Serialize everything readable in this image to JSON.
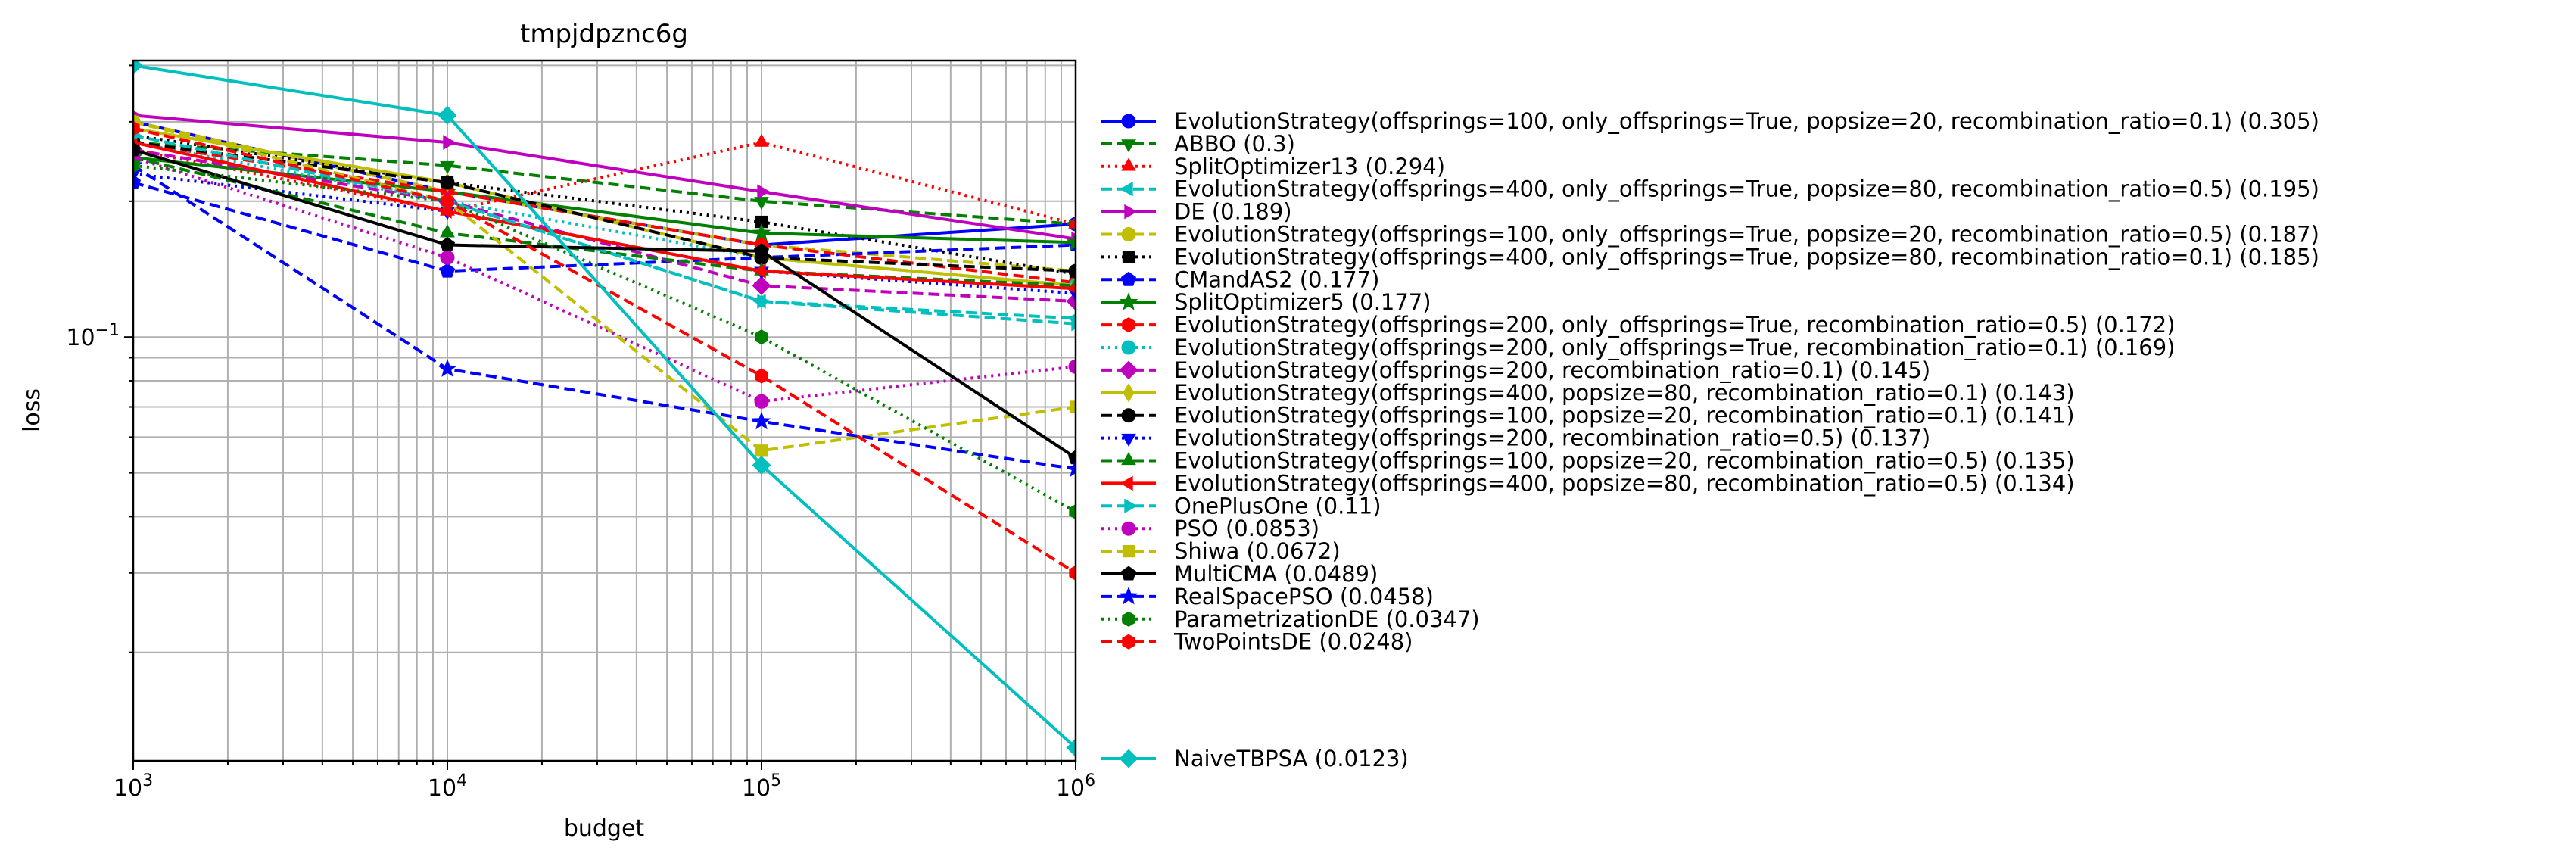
{
  "chart_data": {
    "type": "line",
    "title": "tmpjdpznc6g",
    "xlabel": "budget",
    "ylabel": "loss",
    "xscale": "log",
    "yscale": "log",
    "xlim": [
      1000,
      1000000
    ],
    "ylim": [
      0.0115,
      0.41
    ],
    "grid": true,
    "legend_position": "right",
    "x_ticks": [
      {
        "value": 1000,
        "label": "10^3"
      },
      {
        "value": 10000,
        "label": "10^4"
      },
      {
        "value": 100000,
        "label": "10^5"
      },
      {
        "value": 1000000,
        "label": "10^6"
      }
    ],
    "y_ticks": [
      {
        "value": 0.1,
        "label": "10^−1"
      }
    ],
    "x": [
      1000,
      10000,
      100000,
      1000000
    ],
    "series": [
      {
        "name": "EvolutionStrategy(offsprings=100, only_offsprings=True, popsize=20, recombination_ratio=0.1) (0.305)",
        "color": "#0000ff",
        "dash": "solid",
        "marker": "circle",
        "values": [
          0.3,
          0.21,
          0.16,
          0.178
        ]
      },
      {
        "name": "ABBO (0.3)",
        "color": "#008000",
        "dash": "dashed",
        "marker": "triangle-down",
        "values": [
          0.27,
          0.24,
          0.2,
          0.178
        ]
      },
      {
        "name": "SplitOptimizer13 (0.294)",
        "color": "#ff0000",
        "dash": "dotted",
        "marker": "triangle-up",
        "values": [
          0.26,
          0.19,
          0.27,
          0.178
        ]
      },
      {
        "name": "EvolutionStrategy(offsprings=400, only_offsprings=True, popsize=80, recombination_ratio=0.5) (0.195)",
        "color": "#00bfbf",
        "dash": "dashed",
        "marker": "triangle-left",
        "values": [
          0.3,
          0.2,
          0.12,
          0.11
        ]
      },
      {
        "name": "DE (0.189)",
        "color": "#bf00bf",
        "dash": "solid",
        "marker": "triangle-right",
        "values": [
          0.31,
          0.27,
          0.21,
          0.165
        ]
      },
      {
        "name": "EvolutionStrategy(offsprings=100, only_offsprings=True, popsize=20, recombination_ratio=0.5) (0.187)",
        "color": "#bfbf00",
        "dash": "dashed",
        "marker": "circle",
        "values": [
          0.3,
          0.21,
          0.16,
          0.14
        ]
      },
      {
        "name": "EvolutionStrategy(offsprings=400, only_offsprings=True, popsize=80, recombination_ratio=0.1) (0.185)",
        "color": "#000000",
        "dash": "dotted",
        "marker": "square",
        "values": [
          0.28,
          0.22,
          0.18,
          0.138
        ]
      },
      {
        "name": "CMandAS2 (0.177)",
        "color": "#0000ff",
        "dash": "dashed",
        "marker": "pentagon",
        "values": [
          0.22,
          0.14,
          0.15,
          0.16
        ]
      },
      {
        "name": "SplitOptimizer5 (0.177)",
        "color": "#008000",
        "dash": "solid",
        "marker": "star",
        "values": [
          0.25,
          0.21,
          0.17,
          0.162
        ]
      },
      {
        "name": "EvolutionStrategy(offsprings=200, only_offsprings=True, recombination_ratio=0.5) (0.172)",
        "color": "#ff0000",
        "dash": "dashed",
        "marker": "hexagon",
        "values": [
          0.27,
          0.21,
          0.16,
          0.132
        ]
      },
      {
        "name": "EvolutionStrategy(offsprings=200, only_offsprings=True, recombination_ratio=0.1) (0.169)",
        "color": "#00bfbf",
        "dash": "dotted",
        "marker": "circle",
        "values": [
          0.27,
          0.2,
          0.15,
          0.13
        ]
      },
      {
        "name": "EvolutionStrategy(offsprings=200, recombination_ratio=0.1) (0.145)",
        "color": "#bf00bf",
        "dash": "dashed",
        "marker": "diamond",
        "values": [
          0.26,
          0.2,
          0.13,
          0.12
        ]
      },
      {
        "name": "EvolutionStrategy(offsprings=400, popsize=80, recombination_ratio=0.1) (0.143)",
        "color": "#bfbf00",
        "dash": "solid",
        "marker": "diamond-thin",
        "values": [
          0.29,
          0.22,
          0.15,
          0.13
        ]
      },
      {
        "name": "EvolutionStrategy(offsprings=100, popsize=20, recombination_ratio=0.1) (0.141)",
        "color": "#000000",
        "dash": "dashed",
        "marker": "circle",
        "values": [
          0.27,
          0.22,
          0.15,
          0.14
        ]
      },
      {
        "name": "EvolutionStrategy(offsprings=200, recombination_ratio=0.5) (0.137)",
        "color": "#0000ff",
        "dash": "dotted",
        "marker": "triangle-down",
        "values": [
          0.23,
          0.19,
          0.14,
          0.125
        ]
      },
      {
        "name": "EvolutionStrategy(offsprings=100, popsize=20, recombination_ratio=0.5) (0.135)",
        "color": "#008000",
        "dash": "dashed",
        "marker": "triangle-up",
        "values": [
          0.25,
          0.17,
          0.14,
          0.13
        ]
      },
      {
        "name": "EvolutionStrategy(offsprings=400, popsize=80, recombination_ratio=0.5) (0.134)",
        "color": "#ff0000",
        "dash": "solid",
        "marker": "triangle-left",
        "values": [
          0.27,
          0.19,
          0.14,
          0.128
        ]
      },
      {
        "name": "OnePlusOne (0.11)",
        "color": "#00bfbf",
        "dash": "dashed",
        "marker": "triangle-right",
        "values": [
          0.28,
          0.2,
          0.12,
          0.107
        ]
      },
      {
        "name": "PSO (0.0853)",
        "color": "#bf00bf",
        "dash": "dotted",
        "marker": "circle",
        "values": [
          0.25,
          0.15,
          0.072,
          0.086
        ]
      },
      {
        "name": "Shiwa (0.0672)",
        "color": "#bfbf00",
        "dash": "dashed",
        "marker": "square",
        "values": [
          0.3,
          0.2,
          0.056,
          0.07
        ]
      },
      {
        "name": "MultiCMA (0.0489)",
        "color": "#000000",
        "dash": "solid",
        "marker": "pentagon",
        "values": [
          0.26,
          0.16,
          0.155,
          0.054
        ]
      },
      {
        "name": "RealSpacePSO (0.0458)",
        "color": "#0000ff",
        "dash": "dashed",
        "marker": "star",
        "values": [
          0.24,
          0.085,
          0.065,
          0.051
        ]
      },
      {
        "name": "ParametrizationDE (0.0347)",
        "color": "#008000",
        "dash": "dotted",
        "marker": "hexagon",
        "values": [
          0.24,
          0.2,
          0.1,
          0.041
        ]
      },
      {
        "name": "TwoPointsDE (0.0248)",
        "color": "#ff0000",
        "dash": "dashed",
        "marker": "hexagon",
        "values": [
          0.29,
          0.2,
          0.082,
          0.03
        ]
      },
      {
        "name": "NaiveTBPSA (0.0123)",
        "color": "#00bfbf",
        "dash": "solid",
        "marker": "diamond",
        "values": [
          0.4,
          0.31,
          0.052,
          0.0123
        ]
      }
    ]
  }
}
